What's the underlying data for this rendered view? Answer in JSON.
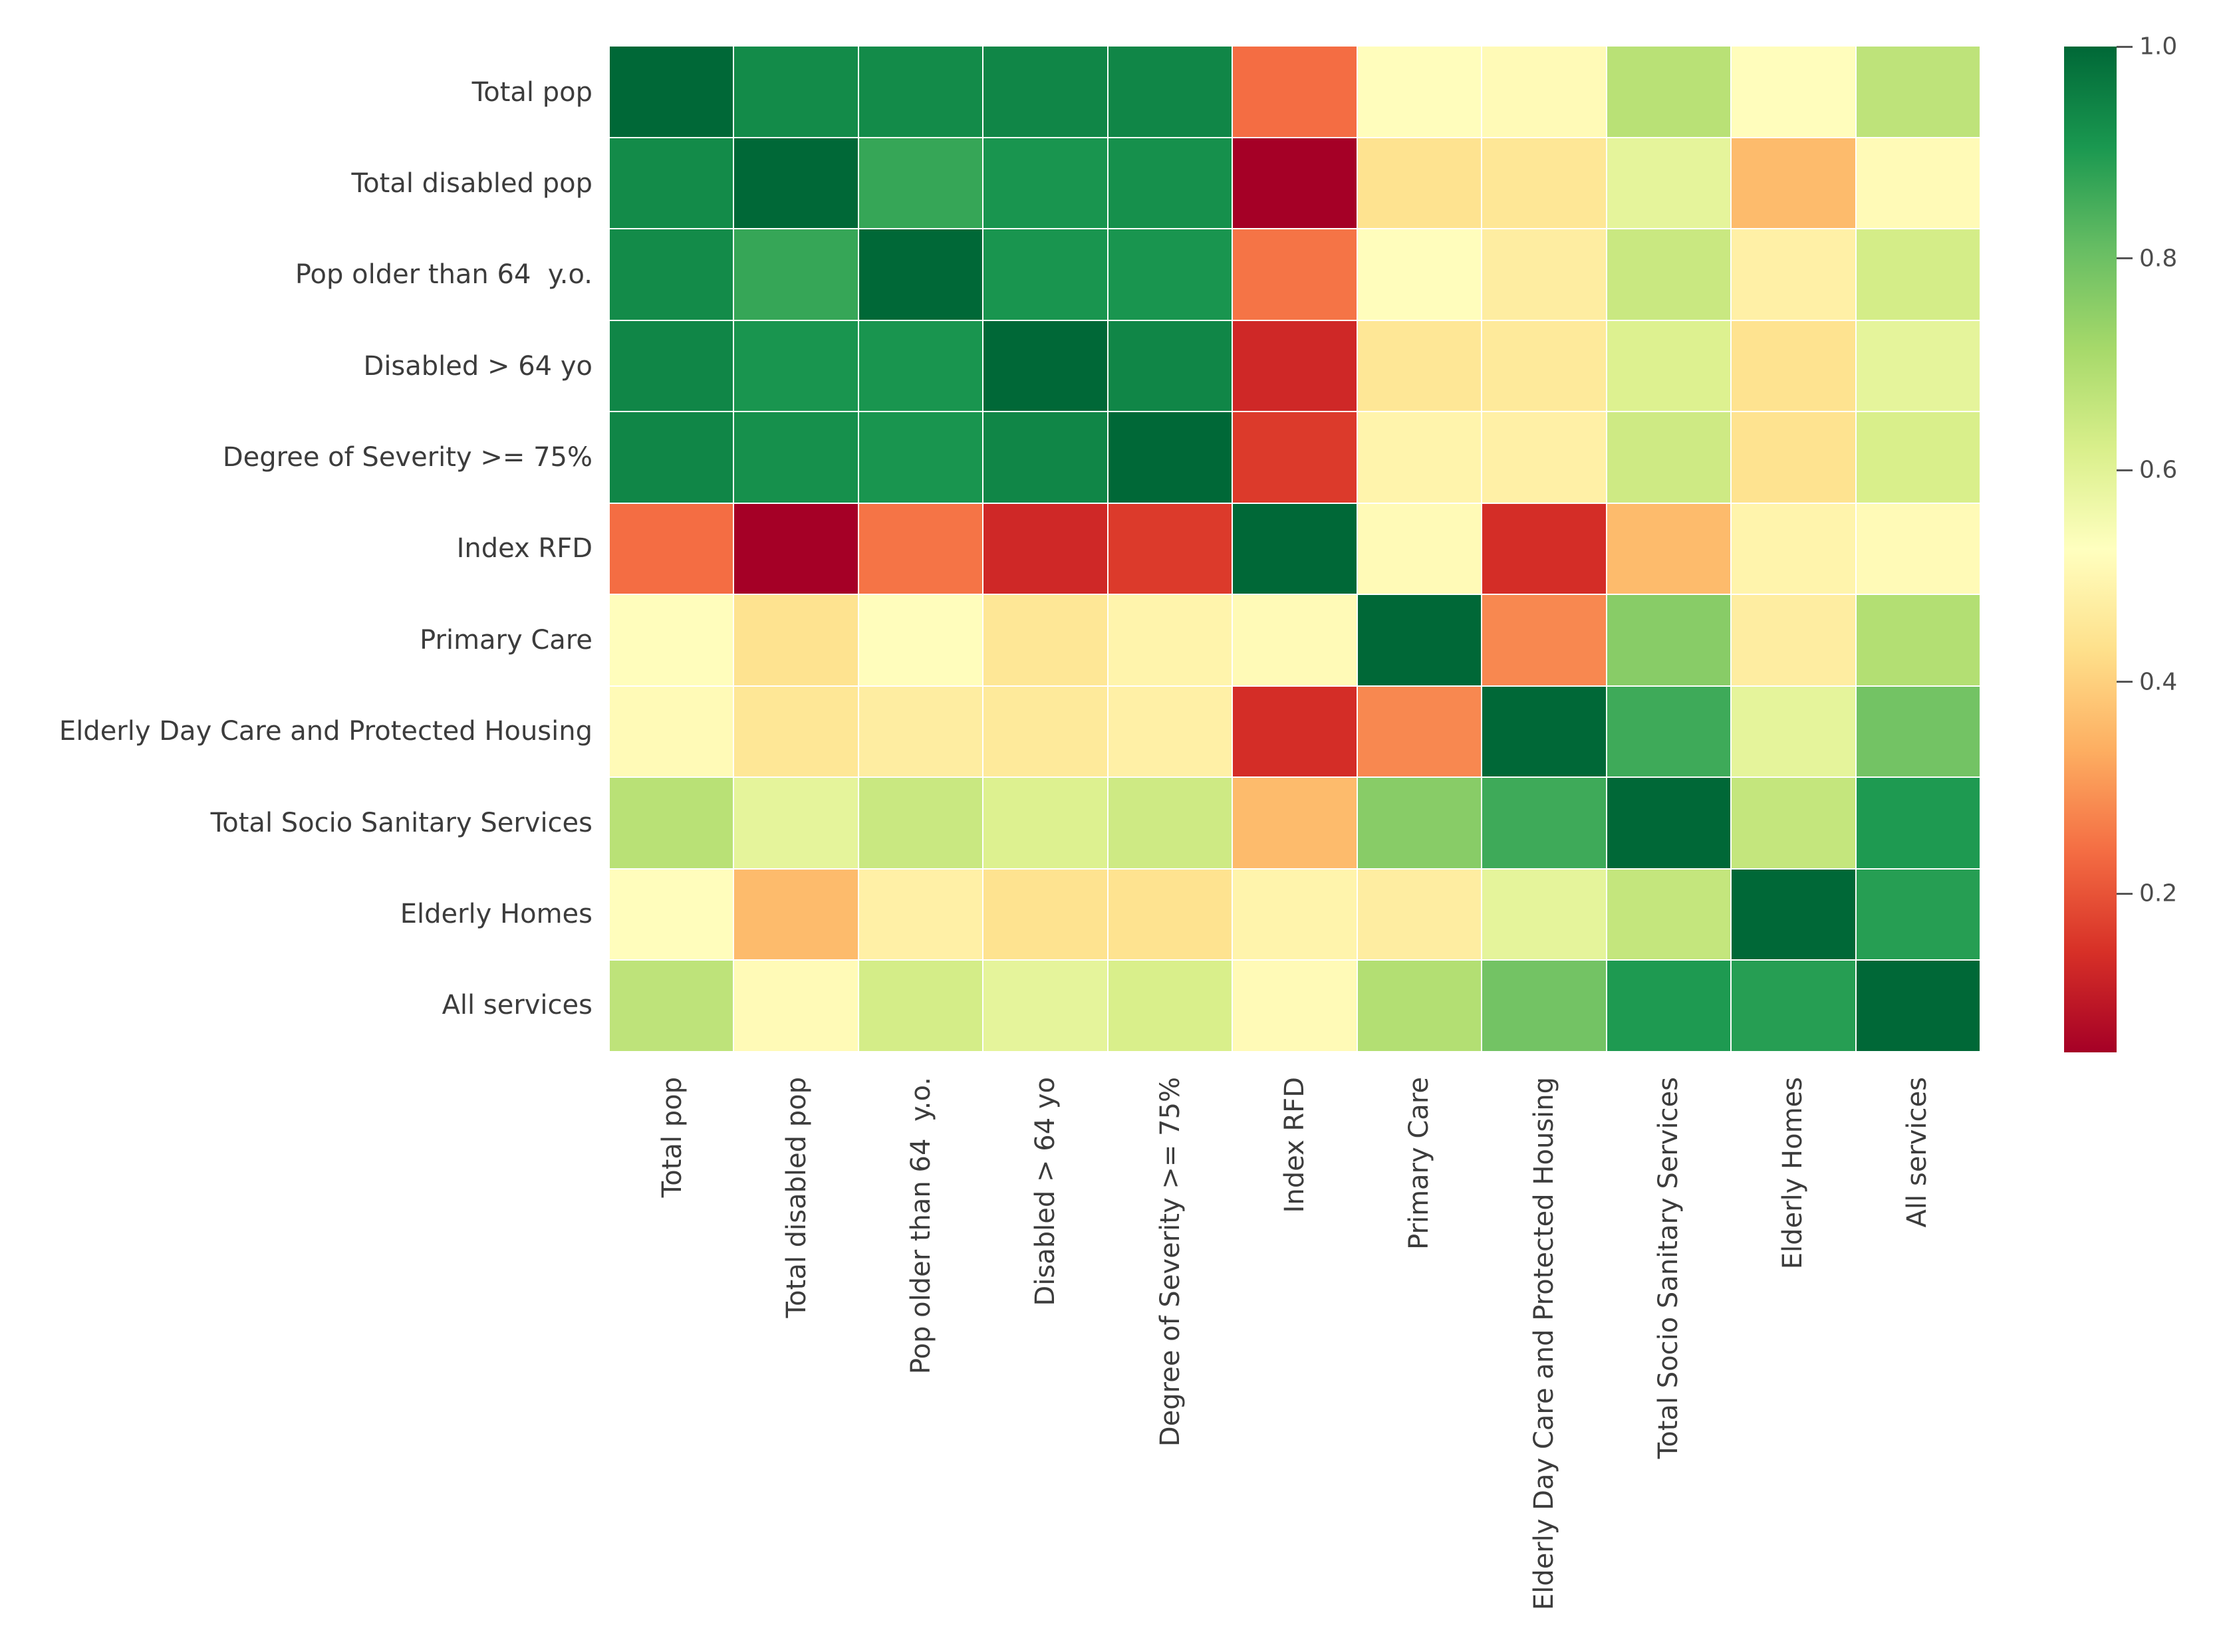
{
  "figure": {
    "background": "#ffffff",
    "text_color": "#3c3c3c"
  },
  "chart_data": {
    "type": "heatmap",
    "title": "",
    "xlabel": "",
    "ylabel": "",
    "legend_position": "right-colorbar",
    "grid": false,
    "labels": [
      "Total pop",
      "Total disabled pop",
      "Pop older than 64  y.o.",
      "Disabled > 64 yo",
      "Degree of Severity >= 75%",
      "Index RFD",
      "Primary Care",
      "Elderly Day Care and Protected Housing",
      "Total Socio Sanitary Services",
      "Elderly Homes",
      "All services"
    ],
    "matrix": [
      [
        1.0,
        0.93,
        0.93,
        0.94,
        0.94,
        0.24,
        0.52,
        0.51,
        0.68,
        0.52,
        0.67
      ],
      [
        0.93,
        1.0,
        0.87,
        0.91,
        0.92,
        0.05,
        0.44,
        0.45,
        0.59,
        0.36,
        0.51
      ],
      [
        0.93,
        0.87,
        1.0,
        0.91,
        0.91,
        0.25,
        0.52,
        0.47,
        0.65,
        0.48,
        0.63
      ],
      [
        0.94,
        0.91,
        0.91,
        1.0,
        0.94,
        0.13,
        0.45,
        0.46,
        0.61,
        0.44,
        0.59
      ],
      [
        0.94,
        0.92,
        0.91,
        0.94,
        1.0,
        0.16,
        0.49,
        0.48,
        0.64,
        0.44,
        0.62
      ],
      [
        0.24,
        0.05,
        0.25,
        0.13,
        0.16,
        1.0,
        0.51,
        0.14,
        0.36,
        0.49,
        0.51
      ],
      [
        0.52,
        0.44,
        0.52,
        0.45,
        0.49,
        0.51,
        1.0,
        0.28,
        0.76,
        0.47,
        0.69
      ],
      [
        0.51,
        0.45,
        0.47,
        0.46,
        0.48,
        0.14,
        0.28,
        1.0,
        0.86,
        0.59,
        0.79
      ],
      [
        0.68,
        0.59,
        0.65,
        0.61,
        0.64,
        0.36,
        0.76,
        0.86,
        1.0,
        0.66,
        0.9
      ],
      [
        0.52,
        0.36,
        0.48,
        0.44,
        0.44,
        0.49,
        0.47,
        0.59,
        0.66,
        1.0,
        0.89
      ],
      [
        0.67,
        0.51,
        0.63,
        0.59,
        0.62,
        0.51,
        0.69,
        0.79,
        0.9,
        0.89,
        1.0
      ]
    ],
    "colorbar": {
      "vmin": 0.05,
      "vmax": 1.0,
      "ticks": [
        1.0,
        0.8,
        0.6,
        0.4,
        0.2
      ],
      "tick_labels": [
        "1.0",
        "0.8",
        "0.6",
        "0.4",
        "0.2"
      ]
    },
    "colormap": {
      "name": "RdYlGn",
      "anchors": [
        "#a50026",
        "#d73027",
        "#f46d43",
        "#fdae61",
        "#fee08b",
        "#ffffbf",
        "#d9ef8b",
        "#a6d96a",
        "#66bd63",
        "#1a9850",
        "#006837"
      ]
    }
  }
}
